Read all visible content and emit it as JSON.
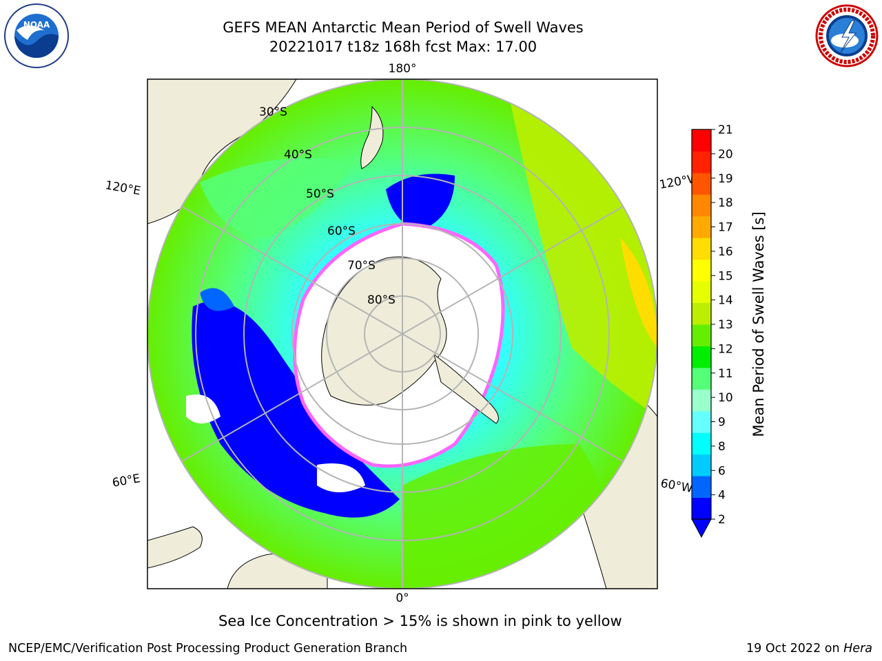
{
  "header": {
    "title_line1": "GEFS MEAN Antarctic Mean Period of Swell Waves",
    "title_line2": "20221017 t18z 168h fcst   Max: 17.00"
  },
  "logos": {
    "left": "NOAA",
    "right": "NATIONAL WEATHER SERVICE"
  },
  "map": {
    "projection": "south-polar-stereographic",
    "latitude_labels": [
      "30°S",
      "40°S",
      "50°S",
      "60°S",
      "70°S",
      "80°S"
    ],
    "longitude_labels": {
      "top": "180°",
      "bottom": "0°",
      "upper_left": "120°E",
      "lower_left": "60°E",
      "upper_right": "120°W",
      "lower_right": "60°W"
    },
    "colors": {
      "land": "#efedd9",
      "sea_ice_edge": "#ff66ff",
      "grid": "#b4b4b4"
    }
  },
  "colorbar": {
    "label": "Mean Period of Swell Waves [s]",
    "ticks": [
      "2",
      "4",
      "6",
      "8",
      "9",
      "10",
      "11",
      "12",
      "13",
      "14",
      "15",
      "16",
      "17",
      "18",
      "19",
      "20",
      "21"
    ],
    "colors": [
      "#0000ff",
      "#0066ff",
      "#00ccff",
      "#00ffff",
      "#66ffff",
      "#99ffcc",
      "#55ff77",
      "#00ee00",
      "#66ee00",
      "#bbee00",
      "#e6ff00",
      "#ffff00",
      "#ffdd00",
      "#ffaa00",
      "#ff8800",
      "#ff5500",
      "#ff2200",
      "#ff0000"
    ],
    "under_color": "#0000ff"
  },
  "caption": "Sea Ice Concentration > 15% is shown in pink to yellow",
  "footer": {
    "left": "NCEP/EMC/Verification Post Processing Product Generation Branch",
    "right_date": "19 Oct 2022 on ",
    "right_host": "Hera"
  }
}
